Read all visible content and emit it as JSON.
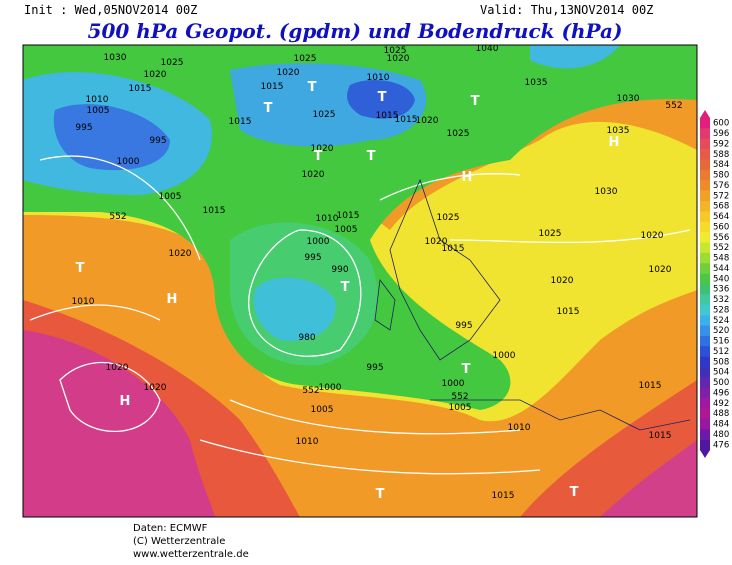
{
  "header": {
    "init": "Init : Wed,05NOV2014 00Z",
    "valid": "Valid: Thu,13NOV2014 00Z",
    "title": "500 hPa Geopot. (gpdm) und Bodendruck (hPa)"
  },
  "colorbar": {
    "ticks": [
      600,
      596,
      592,
      588,
      584,
      580,
      576,
      572,
      568,
      564,
      560,
      556,
      552,
      548,
      544,
      540,
      536,
      532,
      528,
      524,
      520,
      516,
      512,
      508,
      504,
      500,
      496,
      492,
      488,
      484,
      480,
      476
    ],
    "colors": [
      "#e0207a",
      "#e23a6e",
      "#e44c5a",
      "#e65a48",
      "#e8683c",
      "#ea7a34",
      "#ee8c2c",
      "#f2a028",
      "#f4b428",
      "#f6c828",
      "#f6dc28",
      "#eeec2c",
      "#c8e830",
      "#9cdc34",
      "#70d03c",
      "#48c844",
      "#40c070",
      "#40c8a0",
      "#40c8d0",
      "#3cb0e8",
      "#3890e8",
      "#3070e0",
      "#2c50d8",
      "#3038c8",
      "#4030b8",
      "#6028b0",
      "#8020a8",
      "#a018a0",
      "#b01890",
      "#9818a0",
      "#7018a8",
      "#5018a0"
    ]
  },
  "isobar_labels": [
    1030,
    1020,
    1025,
    1015,
    1010,
    1005,
    995,
    995,
    1000,
    1020,
    1025,
    1015,
    1015,
    1025,
    1020,
    1020,
    1010,
    1015,
    1015,
    1020,
    1025,
    1035,
    1030,
    1035,
    1030,
    1005,
    1015,
    1020,
    1010,
    1020,
    1020,
    1010,
    1015,
    1005,
    1000,
    995,
    990,
    980,
    995,
    1000,
    1005,
    1010,
    1025,
    1020,
    1015,
    1025,
    1020,
    1015,
    1020,
    1020,
    1015,
    1015,
    995,
    1000,
    1000,
    1005,
    1010,
    1015,
    1040,
    1025,
    1020,
    552,
    552,
    552,
    552
  ],
  "pressure_centres": [
    "T",
    "H",
    "H",
    "T",
    "T",
    "T",
    "T",
    "T",
    "T",
    "T",
    "H",
    "H",
    "T",
    "T",
    "T"
  ],
  "footer": [
    "Daten: ECMWF",
    "(C) Wetterzentrale",
    "www.wetterzentrale.de"
  ]
}
